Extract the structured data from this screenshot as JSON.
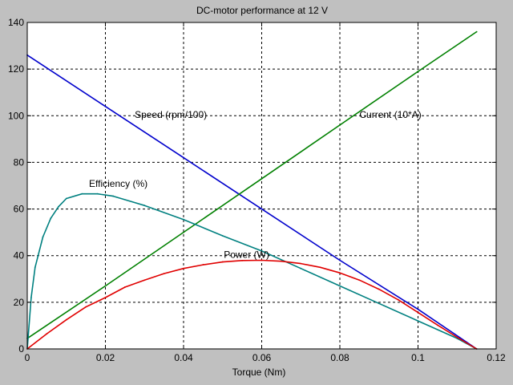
{
  "chart_data": {
    "type": "line",
    "title": "DC-motor performance at 12 V",
    "xlabel": "Torque (Nm)",
    "ylabel": "",
    "xlim": [
      0,
      0.12
    ],
    "ylim": [
      0,
      140
    ],
    "xticks": [
      0,
      0.02,
      0.04,
      0.06,
      0.08,
      0.1,
      0.12
    ],
    "xtick_labels": [
      "0",
      "0.02",
      "0.04",
      "0.06",
      "0.08",
      "0.1",
      "0.12"
    ],
    "yticks": [
      0,
      20,
      40,
      60,
      80,
      100,
      120,
      140
    ],
    "ytick_labels": [
      "0",
      "20",
      "40",
      "60",
      "80",
      "100",
      "120",
      "140"
    ],
    "grid": true,
    "series": [
      {
        "name": "Speed (rpm/100)",
        "color": "#0000cc",
        "x": [
          0,
          0.02,
          0.04,
          0.06,
          0.08,
          0.1,
          0.115
        ],
        "y": [
          126,
          104,
          82,
          60,
          38,
          17,
          0
        ]
      },
      {
        "name": "Current (10*A)",
        "color": "#008000",
        "x": [
          0,
          0.02,
          0.04,
          0.06,
          0.08,
          0.1,
          0.115
        ],
        "y": [
          4.5,
          27,
          50,
          73,
          96,
          119,
          136
        ]
      },
      {
        "name": "Efficiency (%)",
        "color": "#008080",
        "x": [
          0,
          0.001,
          0.002,
          0.004,
          0.006,
          0.008,
          0.01,
          0.014,
          0.018,
          0.022,
          0.03,
          0.04,
          0.05,
          0.06,
          0.07,
          0.08,
          0.09,
          0.1,
          0.11,
          0.115
        ],
        "y": [
          0,
          22,
          35,
          48,
          56,
          61,
          64.5,
          66.5,
          66.5,
          65.5,
          61.5,
          55.5,
          48.5,
          42,
          34.5,
          27,
          19.5,
          12,
          4.5,
          0
        ]
      },
      {
        "name": "Power (W)",
        "color": "#e00000",
        "x": [
          0,
          0.005,
          0.01,
          0.015,
          0.02,
          0.025,
          0.03,
          0.035,
          0.04,
          0.045,
          0.05,
          0.055,
          0.06,
          0.065,
          0.07,
          0.075,
          0.08,
          0.085,
          0.09,
          0.095,
          0.1,
          0.105,
          0.11,
          0.115
        ],
        "y": [
          0,
          6.5,
          12.5,
          18,
          22,
          26.5,
          29.5,
          32.3,
          34.5,
          36.1,
          37.3,
          37.9,
          38,
          37.6,
          36.6,
          35,
          32.6,
          29.5,
          25.6,
          21,
          15.6,
          10.2,
          5,
          0
        ]
      }
    ],
    "annotations": [
      {
        "text": "Speed (rpm/100)",
        "x": 0.0275,
        "y": 99
      },
      {
        "text": "Current (10*A)",
        "x": 0.085,
        "y": 99
      },
      {
        "text": "Efficiency (%)",
        "x": 0.0158,
        "y": 69.5
      },
      {
        "text": "Power (W)",
        "x": 0.0503,
        "y": 39
      }
    ]
  }
}
